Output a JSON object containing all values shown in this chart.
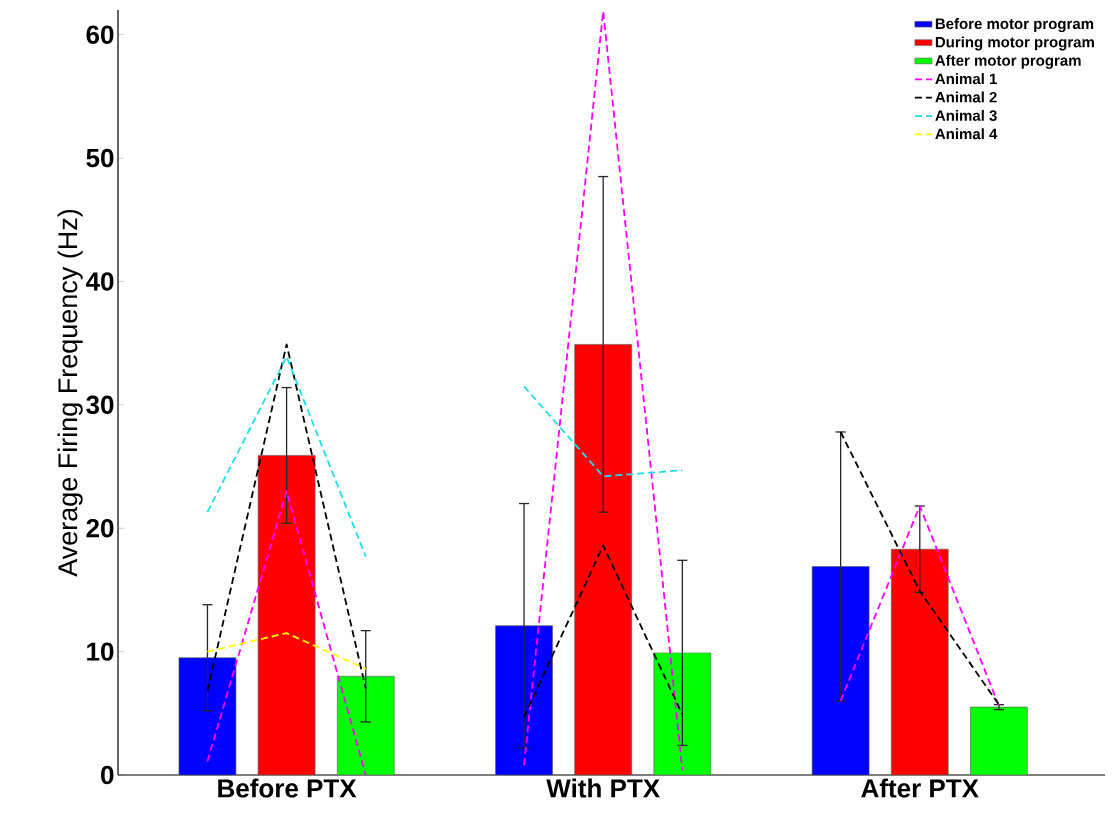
{
  "chart_data": {
    "type": "bar",
    "ylabel": "Average Firing Frequency (Hz)",
    "categories": [
      null,
      "Before PTX",
      null,
      null,
      null,
      "With PTX",
      null,
      null,
      null,
      "After PTX",
      null
    ],
    "ylim": [
      0,
      62
    ],
    "yticks": [
      0,
      10,
      20,
      30,
      40,
      50,
      60
    ],
    "legend": "top right",
    "series": [
      {
        "name": "Before motor program",
        "color": "#0000ff",
        "values": [
          9.5,
          null,
          null,
          null,
          12.1,
          null,
          null,
          null,
          16.9,
          null,
          null
        ],
        "errors": [
          4.3,
          null,
          null,
          null,
          9.9,
          null,
          null,
          null,
          10.9,
          null,
          null
        ]
      },
      {
        "name": "During motor program",
        "color": "#ff0000",
        "values": [
          null,
          25.9,
          null,
          null,
          null,
          34.9,
          null,
          null,
          null,
          18.3,
          null
        ],
        "errors": [
          null,
          5.5,
          null,
          null,
          null,
          13.6,
          null,
          null,
          null,
          3.5,
          null
        ]
      },
      {
        "name": "After motor program",
        "color": "#00ff00",
        "values": [
          null,
          null,
          8.0,
          null,
          null,
          null,
          9.9,
          null,
          null,
          null,
          5.5
        ],
        "errors": [
          null,
          null,
          3.7,
          null,
          null,
          null,
          7.5,
          null,
          null,
          null,
          0.2
        ]
      },
      {
        "name": "Animal 1",
        "type": "line",
        "line_style": "dashed",
        "color": "#ff00ff",
        "values": [
          1.1,
          23.0,
          0.0,
          null,
          0.8,
          61.9,
          0.4,
          null,
          6.0,
          21.8,
          5.6
        ]
      },
      {
        "name": "Animal 2",
        "type": "line",
        "line_style": "dashed",
        "color": "#000000",
        "values": [
          6.8,
          34.9,
          7.0,
          null,
          4.7,
          18.6,
          4.9,
          null,
          27.8,
          14.9,
          5.7
        ]
      },
      {
        "name": "Animal 3",
        "type": "line",
        "line_style": "dashed",
        "color": "#22ddee",
        "values": [
          21.3,
          33.9,
          17.7,
          null,
          31.5,
          24.2,
          24.7,
          null,
          null,
          null,
          null
        ]
      },
      {
        "name": "Animal 4",
        "type": "line",
        "line_style": "dashed",
        "color": "#ffff00",
        "values": [
          10.0,
          11.5,
          8.6,
          null,
          null,
          null,
          null,
          null,
          null,
          null,
          null
        ]
      }
    ]
  }
}
